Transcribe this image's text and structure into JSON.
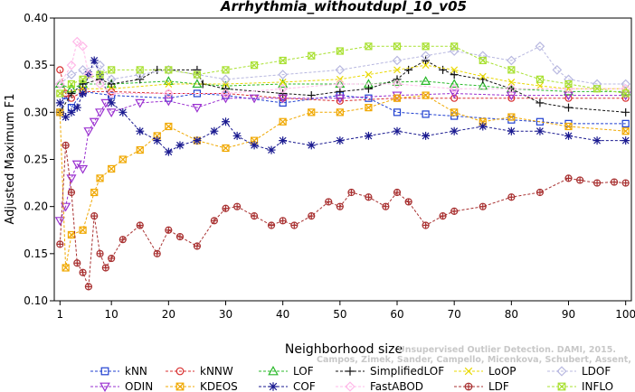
{
  "chart_data": {
    "type": "line",
    "title": "Arrhythmia_withoutdupl_10_v05",
    "xlabel": "Neighborhood size",
    "ylabel": "Adjusted Maximum F1",
    "xlim": [
      0,
      101
    ],
    "ylim": [
      0.1,
      0.4
    ],
    "x_ticks": [
      1,
      10,
      20,
      30,
      40,
      50,
      60,
      70,
      80,
      90,
      100
    ],
    "y_ticks": [
      0.1,
      0.15,
      0.2,
      0.25,
      0.3,
      0.35,
      0.4
    ],
    "x_tick_labels": [
      "1",
      "10",
      "20",
      "30",
      "40",
      "50",
      "60",
      "70",
      "80",
      "90",
      "100"
    ],
    "y_tick_labels": [
      "0.10",
      "0.15",
      "0.20",
      "0.25",
      "0.30",
      "0.35",
      "0.40"
    ],
    "grid": false,
    "legend_placement": "bottom",
    "watermark": [
      "Unsupervised Outlier Detection. DAMI, 2015.",
      "Campos, Zimek, Sander, Campello, Micenkova, Schubert, Assent, Houle"
    ],
    "series": [
      {
        "name": "kNN",
        "color": "#1f3fd0",
        "marker": "square",
        "anchors": [
          [
            1,
            0.3
          ],
          [
            2,
            0.318
          ],
          [
            3,
            0.305
          ],
          [
            5,
            0.322
          ],
          [
            10,
            0.318
          ],
          [
            20,
            0.315
          ],
          [
            25,
            0.32
          ],
          [
            30,
            0.318
          ],
          [
            40,
            0.31
          ],
          [
            50,
            0.318
          ],
          [
            55,
            0.315
          ],
          [
            60,
            0.3
          ],
          [
            65,
            0.298
          ],
          [
            70,
            0.296
          ],
          [
            80,
            0.292
          ],
          [
            85,
            0.29
          ],
          [
            90,
            0.288
          ],
          [
            100,
            0.288
          ]
        ]
      },
      {
        "name": "kNNW",
        "color": "#d83030",
        "marker": "circle",
        "anchors": [
          [
            1,
            0.345
          ],
          [
            2,
            0.32
          ],
          [
            3,
            0.315
          ],
          [
            5,
            0.322
          ],
          [
            10,
            0.322
          ],
          [
            20,
            0.32
          ],
          [
            30,
            0.32
          ],
          [
            40,
            0.315
          ],
          [
            50,
            0.312
          ],
          [
            60,
            0.315
          ],
          [
            70,
            0.315
          ],
          [
            80,
            0.315
          ],
          [
            90,
            0.315
          ],
          [
            100,
            0.315
          ]
        ]
      },
      {
        "name": "LOF",
        "color": "#2ab82a",
        "marker": "triangle-up",
        "anchors": [
          [
            1,
            0.33
          ],
          [
            3,
            0.325
          ],
          [
            5,
            0.33
          ],
          [
            10,
            0.33
          ],
          [
            20,
            0.333
          ],
          [
            25,
            0.33
          ],
          [
            30,
            0.328
          ],
          [
            40,
            0.33
          ],
          [
            50,
            0.33
          ],
          [
            55,
            0.33
          ],
          [
            60,
            0.332
          ],
          [
            65,
            0.333
          ],
          [
            70,
            0.33
          ],
          [
            75,
            0.328
          ],
          [
            80,
            0.325
          ],
          [
            90,
            0.322
          ],
          [
            100,
            0.322
          ]
        ]
      },
      {
        "name": "SimplifiedLOF",
        "color": "#111111",
        "marker": "plus",
        "anchors": [
          [
            1,
            0.3
          ],
          [
            3,
            0.32
          ],
          [
            5,
            0.33
          ],
          [
            8,
            0.335
          ],
          [
            10,
            0.33
          ],
          [
            15,
            0.335
          ],
          [
            18,
            0.345
          ],
          [
            25,
            0.345
          ],
          [
            26,
            0.33
          ],
          [
            30,
            0.325
          ],
          [
            40,
            0.32
          ],
          [
            45,
            0.318
          ],
          [
            50,
            0.322
          ],
          [
            55,
            0.325
          ],
          [
            60,
            0.335
          ],
          [
            62,
            0.345
          ],
          [
            65,
            0.355
          ],
          [
            68,
            0.345
          ],
          [
            70,
            0.34
          ],
          [
            75,
            0.335
          ],
          [
            80,
            0.325
          ],
          [
            85,
            0.31
          ],
          [
            90,
            0.305
          ],
          [
            100,
            0.3
          ]
        ]
      },
      {
        "name": "LoOP",
        "color": "#e8d800",
        "marker": "cross",
        "anchors": [
          [
            1,
            0.32
          ],
          [
            5,
            0.325
          ],
          [
            10,
            0.325
          ],
          [
            20,
            0.33
          ],
          [
            30,
            0.33
          ],
          [
            40,
            0.332
          ],
          [
            50,
            0.335
          ],
          [
            55,
            0.34
          ],
          [
            60,
            0.345
          ],
          [
            65,
            0.35
          ],
          [
            70,
            0.345
          ],
          [
            75,
            0.338
          ],
          [
            80,
            0.332
          ],
          [
            85,
            0.328
          ],
          [
            90,
            0.325
          ],
          [
            100,
            0.325
          ]
        ]
      },
      {
        "name": "LDOF",
        "color": "#b8b8e0",
        "marker": "diamond",
        "anchors": [
          [
            1,
            0.33
          ],
          [
            3,
            0.34
          ],
          [
            5,
            0.345
          ],
          [
            8,
            0.35
          ],
          [
            10,
            0.335
          ],
          [
            15,
            0.34
          ],
          [
            20,
            0.345
          ],
          [
            25,
            0.34
          ],
          [
            30,
            0.335
          ],
          [
            40,
            0.34
          ],
          [
            50,
            0.345
          ],
          [
            60,
            0.355
          ],
          [
            65,
            0.36
          ],
          [
            70,
            0.365
          ],
          [
            75,
            0.36
          ],
          [
            80,
            0.355
          ],
          [
            85,
            0.37
          ],
          [
            88,
            0.345
          ],
          [
            90,
            0.335
          ],
          [
            95,
            0.33
          ],
          [
            100,
            0.33
          ]
        ]
      },
      {
        "name": "ODIN",
        "color": "#9a30d0",
        "marker": "triangle-down",
        "anchors": [
          [
            1,
            0.185
          ],
          [
            2,
            0.2
          ],
          [
            3,
            0.23
          ],
          [
            4,
            0.245
          ],
          [
            5,
            0.24
          ],
          [
            6,
            0.28
          ],
          [
            7,
            0.29
          ],
          [
            8,
            0.3
          ],
          [
            9,
            0.31
          ],
          [
            10,
            0.3
          ],
          [
            15,
            0.31
          ],
          [
            20,
            0.312
          ],
          [
            25,
            0.305
          ],
          [
            30,
            0.315
          ],
          [
            35,
            0.315
          ],
          [
            40,
            0.315
          ],
          [
            50,
            0.315
          ],
          [
            60,
            0.318
          ],
          [
            70,
            0.32
          ],
          [
            80,
            0.318
          ],
          [
            90,
            0.318
          ],
          [
            100,
            0.318
          ]
        ]
      },
      {
        "name": "KDEOS",
        "color": "#f0a800",
        "marker": "square-x",
        "anchors": [
          [
            1,
            0.3
          ],
          [
            2,
            0.135
          ],
          [
            3,
            0.17
          ],
          [
            5,
            0.175
          ],
          [
            7,
            0.215
          ],
          [
            8,
            0.23
          ],
          [
            10,
            0.24
          ],
          [
            12,
            0.25
          ],
          [
            15,
            0.26
          ],
          [
            18,
            0.275
          ],
          [
            20,
            0.285
          ],
          [
            25,
            0.27
          ],
          [
            30,
            0.262
          ],
          [
            35,
            0.27
          ],
          [
            40,
            0.29
          ],
          [
            45,
            0.3
          ],
          [
            50,
            0.3
          ],
          [
            55,
            0.305
          ],
          [
            60,
            0.315
          ],
          [
            65,
            0.318
          ],
          [
            70,
            0.3
          ],
          [
            75,
            0.29
          ],
          [
            80,
            0.295
          ],
          [
            90,
            0.285
          ],
          [
            100,
            0.28
          ]
        ]
      },
      {
        "name": "COF",
        "color": "#1a1a90",
        "marker": "asterisk",
        "anchors": [
          [
            1,
            0.31
          ],
          [
            2,
            0.295
          ],
          [
            3,
            0.3
          ],
          [
            4,
            0.305
          ],
          [
            5,
            0.32
          ],
          [
            6,
            0.34
          ],
          [
            7,
            0.355
          ],
          [
            8,
            0.34
          ],
          [
            10,
            0.31
          ],
          [
            12,
            0.3
          ],
          [
            15,
            0.28
          ],
          [
            18,
            0.27
          ],
          [
            20,
            0.258
          ],
          [
            22,
            0.265
          ],
          [
            25,
            0.27
          ],
          [
            28,
            0.28
          ],
          [
            30,
            0.29
          ],
          [
            32,
            0.275
          ],
          [
            35,
            0.265
          ],
          [
            38,
            0.26
          ],
          [
            40,
            0.27
          ],
          [
            45,
            0.265
          ],
          [
            50,
            0.27
          ],
          [
            55,
            0.275
          ],
          [
            60,
            0.28
          ],
          [
            65,
            0.275
          ],
          [
            70,
            0.28
          ],
          [
            75,
            0.285
          ],
          [
            80,
            0.28
          ],
          [
            85,
            0.28
          ],
          [
            90,
            0.275
          ],
          [
            95,
            0.27
          ],
          [
            100,
            0.27
          ]
        ]
      },
      {
        "name": "FastABOD",
        "color": "#ffb8e8",
        "marker": "diamond",
        "anchors": [
          [
            1,
            0.33
          ],
          [
            3,
            0.35
          ],
          [
            4,
            0.375
          ],
          [
            5,
            0.37
          ],
          [
            6,
            0.34
          ],
          [
            8,
            0.33
          ],
          [
            10,
            0.32
          ],
          [
            20,
            0.32
          ],
          [
            30,
            0.32
          ],
          [
            40,
            0.325
          ],
          [
            50,
            0.33
          ],
          [
            60,
            0.33
          ],
          [
            70,
            0.325
          ],
          [
            80,
            0.325
          ],
          [
            90,
            0.325
          ],
          [
            100,
            0.325
          ]
        ]
      },
      {
        "name": "LDF",
        "color": "#a83030",
        "marker": "circle-plus",
        "anchors": [
          [
            1,
            0.16
          ],
          [
            2,
            0.265
          ],
          [
            3,
            0.215
          ],
          [
            4,
            0.14
          ],
          [
            5,
            0.13
          ],
          [
            6,
            0.115
          ],
          [
            7,
            0.19
          ],
          [
            8,
            0.15
          ],
          [
            9,
            0.135
          ],
          [
            10,
            0.145
          ],
          [
            12,
            0.165
          ],
          [
            15,
            0.18
          ],
          [
            18,
            0.15
          ],
          [
            20,
            0.175
          ],
          [
            22,
            0.168
          ],
          [
            25,
            0.158
          ],
          [
            28,
            0.185
          ],
          [
            30,
            0.198
          ],
          [
            32,
            0.2
          ],
          [
            35,
            0.19
          ],
          [
            38,
            0.18
          ],
          [
            40,
            0.185
          ],
          [
            42,
            0.18
          ],
          [
            45,
            0.19
          ],
          [
            48,
            0.205
          ],
          [
            50,
            0.2
          ],
          [
            52,
            0.215
          ],
          [
            55,
            0.21
          ],
          [
            58,
            0.2
          ],
          [
            60,
            0.215
          ],
          [
            62,
            0.205
          ],
          [
            65,
            0.18
          ],
          [
            68,
            0.19
          ],
          [
            70,
            0.195
          ],
          [
            75,
            0.2
          ],
          [
            80,
            0.21
          ],
          [
            85,
            0.215
          ],
          [
            90,
            0.23
          ],
          [
            92,
            0.228
          ],
          [
            95,
            0.225
          ],
          [
            98,
            0.226
          ],
          [
            100,
            0.225
          ]
        ]
      },
      {
        "name": "INFLO",
        "color": "#a8e030",
        "marker": "square-x",
        "anchors": [
          [
            1,
            0.32
          ],
          [
            3,
            0.33
          ],
          [
            5,
            0.335
          ],
          [
            8,
            0.34
          ],
          [
            10,
            0.345
          ],
          [
            15,
            0.345
          ],
          [
            20,
            0.345
          ],
          [
            25,
            0.34
          ],
          [
            30,
            0.345
          ],
          [
            35,
            0.35
          ],
          [
            40,
            0.355
          ],
          [
            45,
            0.36
          ],
          [
            50,
            0.365
          ],
          [
            55,
            0.37
          ],
          [
            60,
            0.37
          ],
          [
            65,
            0.37
          ],
          [
            70,
            0.37
          ],
          [
            75,
            0.355
          ],
          [
            80,
            0.345
          ],
          [
            85,
            0.335
          ],
          [
            90,
            0.33
          ],
          [
            95,
            0.325
          ],
          [
            100,
            0.32
          ]
        ]
      }
    ]
  }
}
